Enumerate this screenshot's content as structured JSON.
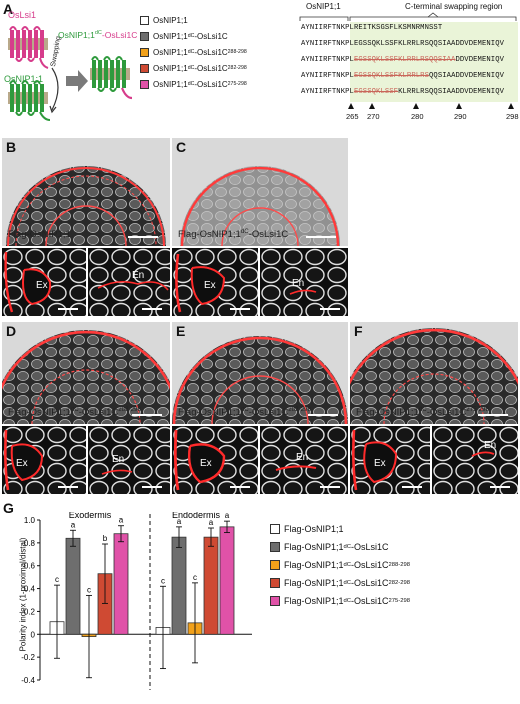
{
  "panels": {
    "A": "A",
    "B": "B",
    "C": "C",
    "D": "D",
    "E": "E",
    "F": "F",
    "G": "G"
  },
  "schematic": {
    "top_protein": "OsLsi1",
    "bottom_protein": "OsNIP1;1",
    "arrow_label": "Swapping",
    "result_prefix": "OsNIP1;1",
    "result_sup": "dC",
    "result_suffix": "-OsLsi1C",
    "colors": {
      "lsi1": "#d63c8b",
      "nip": "#2e9a3c",
      "membrane": "#b9a98a"
    }
  },
  "constructs": [
    {
      "name": "OsNIP1;1",
      "sup": "",
      "tail": "",
      "color": "#ffffff"
    },
    {
      "name": "OsNIP1;1",
      "sup": "dC",
      "tail": "-OsLsi1C",
      "color": "#6e6e6e"
    },
    {
      "name": "OsNIP1;1",
      "sup": "dC",
      "tail": "-OsLsi1C",
      "range": "288-298",
      "color": "#f2a11a"
    },
    {
      "name": "OsNIP1;1",
      "sup": "dC",
      "tail": "-OsLsi1C",
      "range": "282-298",
      "color": "#cf4a33"
    },
    {
      "name": "OsNIP1;1",
      "sup": "dC",
      "tail": "-OsLsi1C",
      "range": "275-298",
      "color": "#e052a8"
    }
  ],
  "alignment": {
    "header_left": "OsNIP1;1",
    "header_right": "C-terminal swapping region",
    "rows": [
      {
        "a": "AYNIIRFTNKPL",
        "b": "REITKSGSFLKSMNRMNSST",
        "c": ""
      },
      {
        "a": "AYNIIRFTNKPL",
        "b": "EGSSQKLSSFKLRRLRSQQSIAADDVDEMENIQV",
        "c": ""
      },
      {
        "a": "AYNIIRFTNKPL",
        "b": "EGSSQKLSSFKLRRLRSQQSIAA",
        "c": "DDVDEMENIQV"
      },
      {
        "a": "AYNIIRFTNKPL",
        "b": "EGSSQKLSSFKLRRLRS",
        "c": "QQSIAADDVDEMENIQV"
      },
      {
        "a": "AYNIIRFTNKPL",
        "b": "EGSSQKLSSF",
        "c": "KLRRLRSQQSIAADDVDEMENIQV"
      }
    ],
    "positions": [
      "265",
      "270",
      "280",
      "290",
      "298"
    ],
    "region_color": "#eaf4d8"
  },
  "micrographs": {
    "B": {
      "label": "Flag-OsNIP1;1",
      "sup": "",
      "tail": "",
      "range": ""
    },
    "C": {
      "label": "Flag-OsNIP1;1",
      "sup": "dC",
      "tail": "-OsLsi1C",
      "range": ""
    },
    "D": {
      "label": "Flag-OsNIP1;1",
      "sup": "dC",
      "tail": "-OsLsi1C",
      "range": "288-298"
    },
    "E": {
      "label": "Flag-OsNIP1;1",
      "sup": "dC",
      "tail": "-OsLsi1C",
      "range": "282-298"
    },
    "F": {
      "label": "Flag-OsNIP1;1",
      "sup": "dC",
      "tail": "-OsLsi1C",
      "range": "275-298"
    },
    "tissue_ex": "Ex",
    "tissue_en": "En"
  },
  "chart_data": {
    "type": "bar",
    "ylabel": "Polarity index (1-proximal/distal)",
    "ylim": [
      -0.4,
      1.0
    ],
    "yticks": [
      "-0.4",
      "-0.2",
      "0",
      "0.2",
      "0.4",
      "0.6",
      "0.8",
      "1.0"
    ],
    "groups": [
      "Exodermis",
      "Endodermis"
    ],
    "series": [
      {
        "name": "Flag-OsNIP1;1",
        "color": "#ffffff",
        "values": [
          0.11,
          0.06
        ],
        "errors": [
          0.32,
          0.36
        ],
        "letters": [
          "c",
          "c"
        ]
      },
      {
        "name": "Flag-OsNIP1;1dC-OsLsi1C",
        "color": "#6e6e6e",
        "values": [
          0.84,
          0.85
        ],
        "errors": [
          0.07,
          0.09
        ],
        "letters": [
          "a",
          "a"
        ]
      },
      {
        "name": "Flag-OsNIP1;1dC-OsLsi1C288-298",
        "color": "#f2a11a",
        "values": [
          -0.02,
          0.1
        ],
        "errors": [
          0.36,
          0.35
        ],
        "letters": [
          "c",
          "c"
        ]
      },
      {
        "name": "Flag-OsNIP1;1dC-OsLsi1C282-298",
        "color": "#cf4a33",
        "values": [
          0.53,
          0.85
        ],
        "errors": [
          0.26,
          0.08
        ],
        "letters": [
          "b",
          "a"
        ]
      },
      {
        "name": "Flag-OsNIP1;1dC-OsLsi1C275-298",
        "color": "#e052a8",
        "values": [
          0.88,
          0.94
        ],
        "errors": [
          0.07,
          0.05
        ],
        "letters": [
          "a",
          "a"
        ]
      }
    ],
    "legend": [
      {
        "name": "Flag-OsNIP1;1",
        "sup": "",
        "tail": "",
        "range": ""
      },
      {
        "name": "Flag-OsNIP1;1",
        "sup": "dC",
        "tail": "-OsLsi1C",
        "range": ""
      },
      {
        "name": "Flag-OsNIP1;1",
        "sup": "dC",
        "tail": "-OsLsi1C",
        "range": "288-298"
      },
      {
        "name": "Flag-OsNIP1;1",
        "sup": "dC",
        "tail": "-OsLsi1C",
        "range": "282-298"
      },
      {
        "name": "Flag-OsNIP1;1",
        "sup": "dC",
        "tail": "-OsLsi1C",
        "range": "275-298"
      }
    ]
  }
}
